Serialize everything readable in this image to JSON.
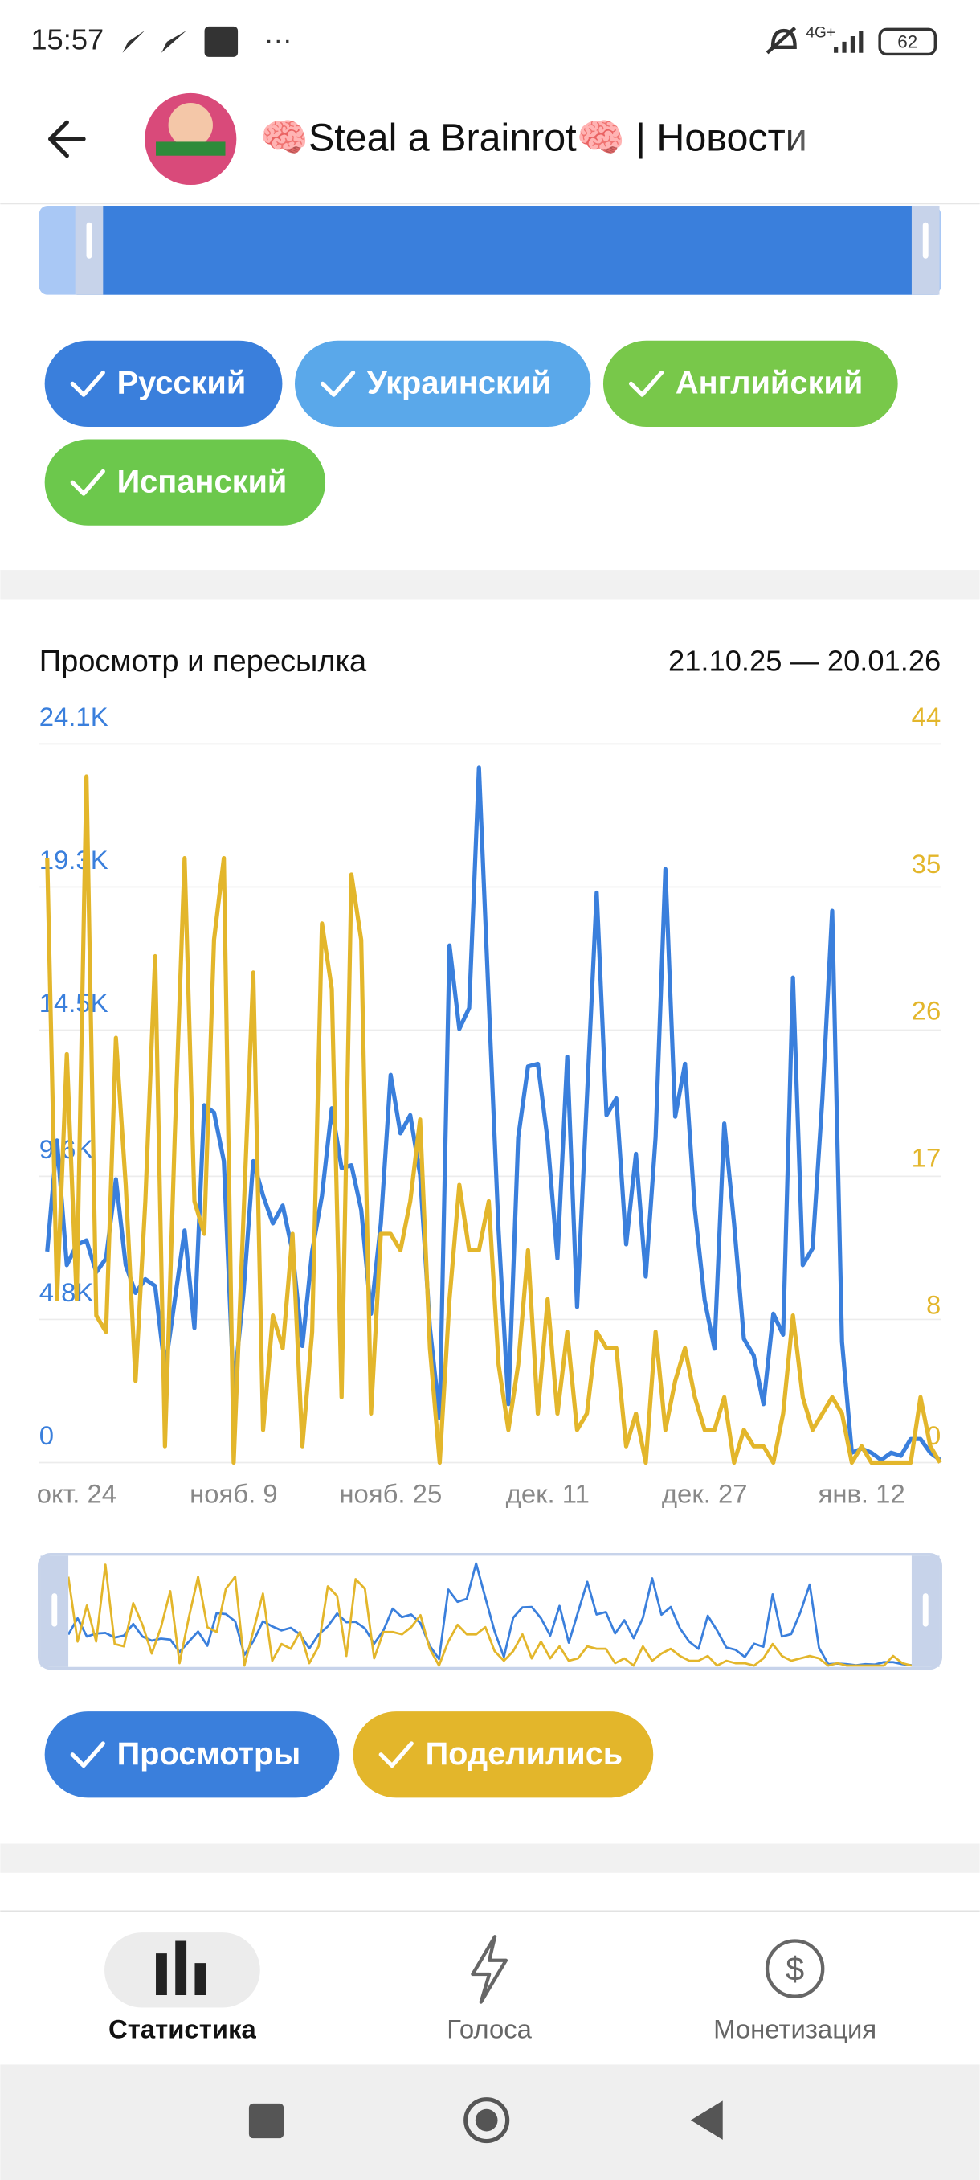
{
  "status_bar": {
    "time": "15:57",
    "network": "4G+",
    "battery": "62"
  },
  "header": {
    "title": "🧠Steal a Brainrot🧠 | Новости"
  },
  "language_filters": [
    {
      "label": "Русский",
      "color": "#3a7fdc"
    },
    {
      "label": "Украинский",
      "color": "#5aa8ea"
    },
    {
      "label": "Английский",
      "color": "#78c84a"
    },
    {
      "label": "Испанский",
      "color": "#6cc84c"
    }
  ],
  "chart_data": {
    "type": "line",
    "title": "Просмотр и пересылка",
    "date_range": "21.10.25 — 20.01.26",
    "categories": [
      null,
      null,
      null,
      "окт. 24",
      null,
      null,
      null,
      null,
      null,
      null,
      null,
      null,
      null,
      null,
      null,
      null,
      null,
      null,
      null,
      "нояб. 9",
      null,
      null,
      null,
      null,
      null,
      null,
      null,
      null,
      null,
      null,
      null,
      null,
      null,
      null,
      null,
      "нояб. 25",
      null,
      null,
      null,
      null,
      null,
      null,
      null,
      null,
      null,
      null,
      null,
      null,
      null,
      null,
      null,
      "дек. 11",
      null,
      null,
      null,
      null,
      null,
      null,
      null,
      null,
      null,
      null,
      null,
      null,
      null,
      null,
      null,
      "дек. 27",
      null,
      null,
      null,
      null,
      null,
      null,
      null,
      null,
      null,
      null,
      null,
      null,
      null,
      null,
      null,
      "янв. 12",
      null,
      null,
      null,
      null,
      null,
      null,
      null,
      null
    ],
    "series": [
      {
        "name": "Просмотры",
        "color": "#3a7fdc",
        "values": [
          7080,
          10800,
          6620,
          7300,
          7450,
          6380,
          6850,
          9500,
          6620,
          5690,
          6150,
          5920,
          3120,
          5450,
          7780,
          4520,
          11980,
          11740,
          10110,
          2420,
          5690,
          10110,
          8950,
          8020,
          8620,
          7080,
          3910,
          7080,
          8950,
          11880,
          9880,
          9970,
          8480,
          4990,
          8020,
          13000,
          11040,
          11650,
          9650,
          4520,
          1490,
          17340,
          14540,
          15240,
          23300,
          15470,
          7780,
          1960,
          10900,
          13280,
          13370,
          10810,
          6850,
          13610,
          5220,
          12210,
          19110,
          11650,
          12210,
          7320,
          10350,
          6240,
          10900,
          19900,
          11600,
          13370,
          8480,
          5450,
          3820,
          11370,
          8020,
          4150,
          3590,
          1960,
          4990,
          4290,
          16260,
          6620,
          7180,
          12210,
          18500,
          4050,
          330,
          470,
          330,
          90,
          330,
          230,
          790,
          790,
          330,
          90
        ]
      },
      {
        "name": "Поделились",
        "color": "#e3b62b",
        "axis": "y2",
        "values": [
          37,
          10,
          25,
          10,
          42,
          9,
          8,
          26,
          17,
          5,
          16,
          31,
          1,
          20,
          37,
          16,
          14,
          32,
          37,
          0,
          15,
          30,
          2,
          9,
          7,
          14,
          1,
          8,
          33,
          29,
          4,
          36,
          32,
          3,
          14,
          14,
          13,
          16,
          21,
          7,
          0,
          10,
          17,
          13,
          13,
          16,
          6,
          2,
          6,
          13,
          3,
          10,
          3,
          8,
          2,
          3,
          8,
          7,
          7,
          1,
          3,
          0,
          8,
          2,
          5,
          7,
          4,
          2,
          2,
          4,
          0,
          2,
          1,
          1,
          0,
          3,
          9,
          4,
          2,
          3,
          4,
          3,
          0,
          1,
          0,
          0,
          0,
          0,
          0,
          4,
          1,
          0
        ]
      }
    ],
    "ylim": [
      0,
      24100
    ],
    "yticks": [
      0,
      {
        "value": 4800,
        "label": "4.8K"
      },
      {
        "value": 9600,
        "label": "9.6K"
      },
      {
        "value": 14500,
        "label": "14.5K"
      },
      {
        "value": 19300,
        "label": "19.3K"
      },
      {
        "value": 24100,
        "label": "24.1K"
      }
    ],
    "y2lim": [
      0,
      44
    ],
    "y2ticks": [
      0,
      8,
      17,
      26,
      35,
      44
    ],
    "grid": true
  },
  "bottom_nav": [
    {
      "label": "Статистика"
    },
    {
      "label": "Голоса"
    },
    {
      "label": "Монетизация"
    }
  ]
}
